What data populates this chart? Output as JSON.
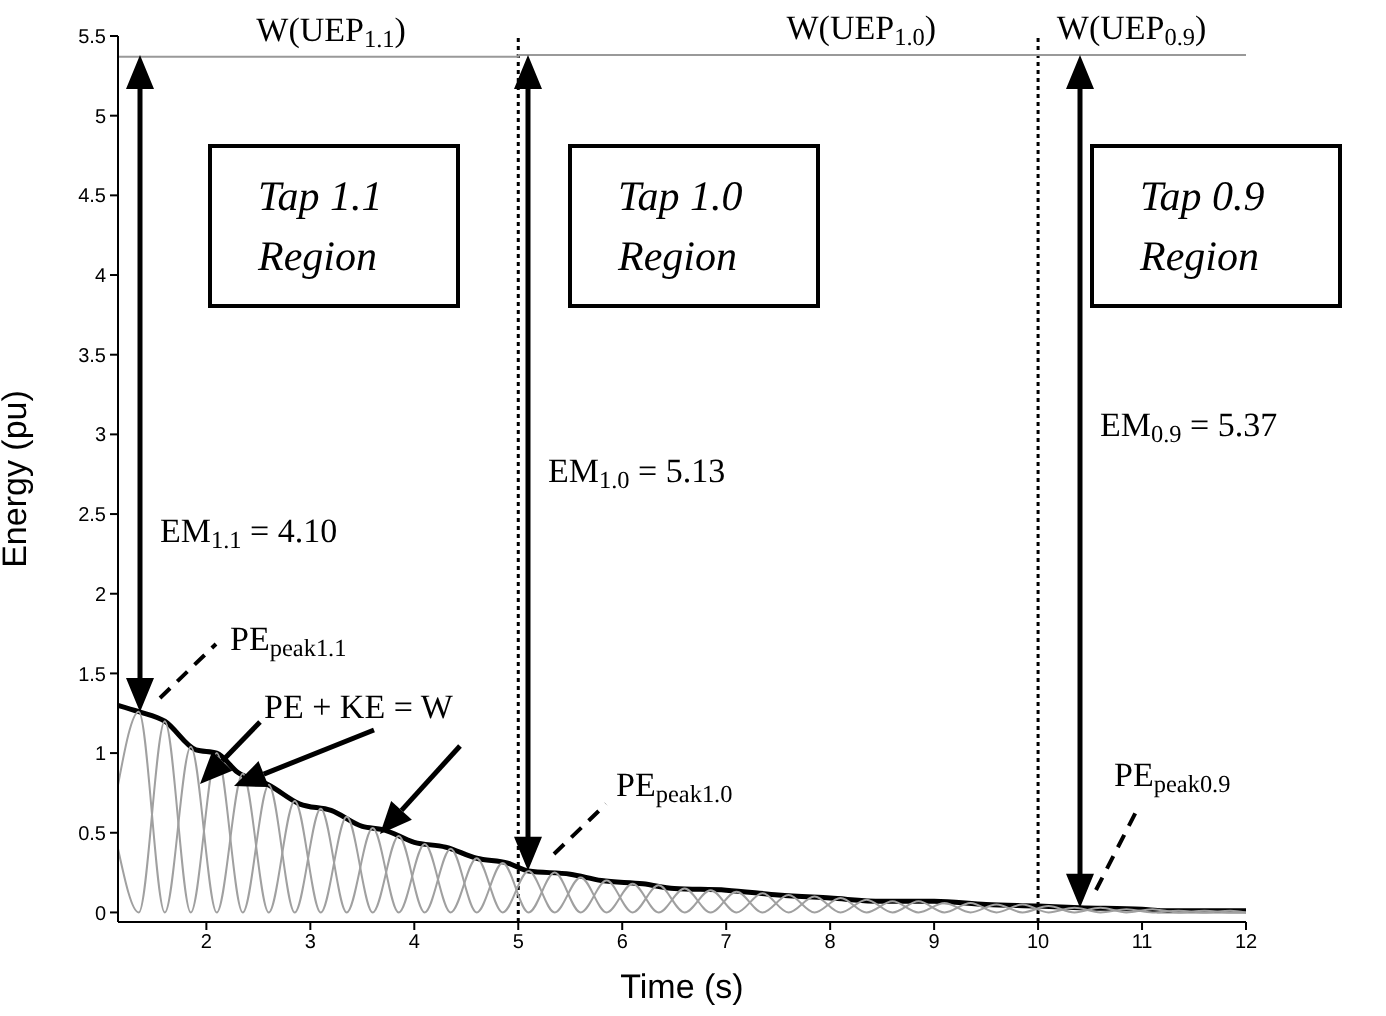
{
  "chart_data": {
    "type": "line",
    "xlabel": "Time (s)",
    "ylabel": "Energy (pu)",
    "xlim": [
      1.15,
      12
    ],
    "xticks": [
      2,
      3,
      4,
      5,
      6,
      7,
      8,
      9,
      10,
      11,
      12
    ],
    "ylim": [
      -0.06,
      5.5
    ],
    "yticks": [
      0,
      0.5,
      1,
      1.5,
      2,
      2.5,
      3,
      3.5,
      4,
      4.5,
      5,
      5.5
    ],
    "legend": false,
    "grid": false,
    "marker": "none",
    "x": [
      1.15,
      1.35,
      1.6,
      1.85,
      2.1,
      2.35,
      2.6,
      2.85,
      3.1,
      3.35,
      3.6,
      3.85,
      4.1,
      4.35,
      4.6,
      4.85,
      5.1,
      5.35,
      5.6,
      5.85,
      6.1,
      6.35,
      6.6,
      6.85,
      7.1,
      7.35,
      7.6,
      7.85,
      8.1,
      8.35,
      8.6,
      8.85,
      9.1,
      9.35,
      9.6,
      9.85,
      10.1,
      10.35,
      10.6,
      10.85,
      11.1,
      11.35,
      11.6,
      11.85,
      12
    ],
    "series": [
      {
        "type": "step",
        "color": "#999999",
        "x": [
          1.15,
          5,
          10,
          12
        ],
        "values": [
          5.37,
          5.38,
          5.38,
          5.38
        ]
      },
      {
        "color": "#000000",
        "x": [
          1.15,
          1.35,
          1.6,
          1.9,
          2.1,
          2.3,
          2.6,
          2.9,
          3.2,
          3.5,
          3.7,
          4.0,
          4.3,
          4.6,
          4.9,
          5.1,
          5.5,
          5.8,
          6.2,
          6.5,
          7.0,
          7.5,
          8.0,
          8.5,
          9.0,
          9.5,
          10.0,
          10.4,
          11.0,
          11.2,
          12
        ],
        "values": [
          1.3,
          1.26,
          1.2,
          1.02,
          1.0,
          0.88,
          0.8,
          0.68,
          0.64,
          0.54,
          0.52,
          0.44,
          0.41,
          0.34,
          0.31,
          0.26,
          0.24,
          0.2,
          0.18,
          0.15,
          0.14,
          0.11,
          0.09,
          0.07,
          0.07,
          0.05,
          0.04,
          0.03,
          0.02,
          0.01,
          0.01
        ]
      },
      {
        "color": "#a0a0a0",
        "values": [
          0.8,
          1.26,
          0,
          1.04,
          0,
          0.87,
          0,
          0.7,
          0,
          0.6,
          0,
          0.48,
          0,
          0.4,
          0,
          0.31,
          0,
          0.25,
          0,
          0.2,
          0,
          0.17,
          0,
          0.14,
          0,
          0.12,
          0,
          0.1,
          0,
          0.08,
          0,
          0.07,
          0,
          0.06,
          0,
          0.05,
          0,
          0.03,
          0,
          0.02,
          0,
          0.01,
          0,
          0.01,
          0
        ]
      },
      {
        "color": "#a0a0a0",
        "values": [
          0.4,
          0,
          1.2,
          0,
          1.0,
          0,
          0.8,
          0,
          0.65,
          0,
          0.53,
          0,
          0.43,
          0,
          0.34,
          0,
          0.26,
          0,
          0.22,
          0,
          0.18,
          0,
          0.15,
          0,
          0.13,
          0,
          0.11,
          0,
          0.09,
          0,
          0.07,
          0,
          0.06,
          0,
          0.05,
          0,
          0.04,
          0,
          0.03,
          0,
          0.02,
          0,
          0.01,
          0,
          0
        ]
      }
    ],
    "ref_lines": [
      {
        "axis": "x",
        "value": 5,
        "line_style": "dotted",
        "color": "#000000"
      },
      {
        "axis": "x",
        "value": 10,
        "line_style": "dotted",
        "color": "#000000"
      }
    ],
    "annotations": [
      {
        "text": "W(UEP$_{1.1}$)",
        "x": 3.2,
        "y": 5.37
      },
      {
        "text": "W(UEP$_{1.0}$)",
        "x": 8.3,
        "y": 5.38
      },
      {
        "text": "W(UEP$_{0.9}$)",
        "x": 10.9,
        "y": 5.38
      },
      "Tap 1.1 Region",
      "Tap 1.0 Region",
      "Tap 0.9 Region",
      "EM$_{1.1}$ = 4.10",
      "EM$_{1.0}$ = 5.13",
      "EM$_{0.9}$ = 5.37",
      "PE$_{peak1.1}$",
      "PE$_{peak1.0}$",
      "PE$_{peak0.9}$",
      "PE + KE = W"
    ]
  }
}
